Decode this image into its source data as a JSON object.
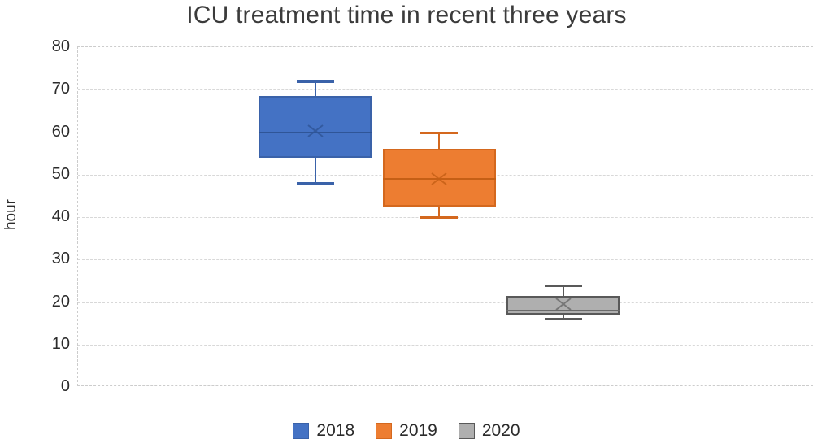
{
  "title": "ICU treatment time in recent three years",
  "chart_data": {
    "type": "boxplot",
    "title": "ICU treatment time in recent three years",
    "ylabel": "hour",
    "ylim": [
      0,
      80
    ],
    "yticks": [
      0,
      10,
      20,
      30,
      40,
      50,
      60,
      70,
      80
    ],
    "grid": true,
    "legend_position": "bottom-center",
    "series": [
      {
        "name": "2018",
        "min": 48,
        "q1": 54,
        "median": 60,
        "mean": 60.3,
        "q3": 68.5,
        "max": 72,
        "fill": "#4472C4",
        "border": "#3A62A9",
        "accent": "#2F5597",
        "pattern": false
      },
      {
        "name": "2019",
        "min": 40,
        "q1": 42.5,
        "median": 49,
        "mean": 49,
        "q3": 56,
        "max": 60,
        "fill": "#ED7D31",
        "border": "#D4681E",
        "accent": "#C55F15",
        "pattern": false
      },
      {
        "name": "2020",
        "min": 16,
        "q1": 17,
        "median": 18,
        "mean": 19.5,
        "q3": 21.5,
        "max": 24,
        "fill": "#AFAFAF",
        "border": "#595959",
        "accent": "#6A6A6A",
        "pattern": true
      }
    ],
    "colors": {
      "gridline": "#D8D8D8",
      "title_text": "#3B3B3B",
      "axis_text": "#2B2B2B"
    }
  }
}
